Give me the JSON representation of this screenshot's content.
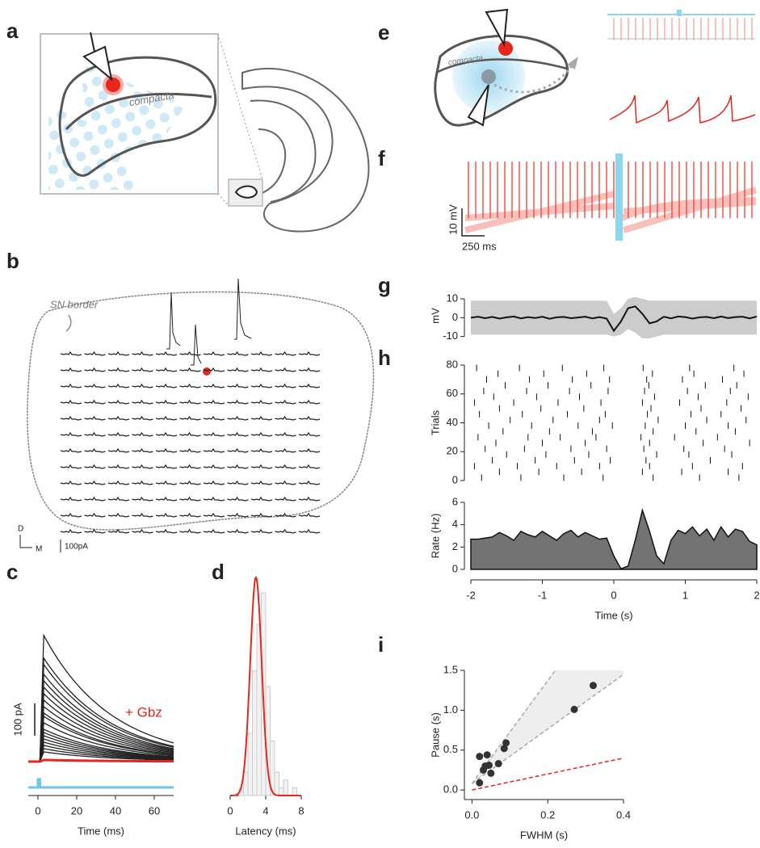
{
  "panels": {
    "a": {
      "label": "a",
      "text": "compacta"
    },
    "b": {
      "label": "b",
      "border": "SN border",
      "dorsal": "D",
      "medial": "M",
      "scale": "100pA"
    },
    "e": {
      "label": "e",
      "text": "compacta"
    },
    "f": {
      "label": "f",
      "yscale": "10 mV",
      "xscale": "250 ms"
    }
  },
  "chart_data": [
    {
      "type": "line",
      "label": "c",
      "xlabel": "Time (ms)",
      "xlim": [
        -5,
        70
      ],
      "xticks": [
        0,
        20,
        40,
        60
      ],
      "ylim": [
        -105,
        407
      ],
      "decay_ms": 35,
      "annotation": "+ Gbz",
      "scalebar": {
        "value": 100,
        "label": "100 pA"
      },
      "stimulus_color": "#6ec6ee",
      "series": [
        {
          "color": "#222222",
          "values": [
            390,
            320,
            300,
            270,
            250,
            230,
            210,
            190,
            170,
            150,
            140,
            120,
            100,
            90,
            80,
            70,
            60,
            50,
            40,
            30
          ]
        },
        {
          "color": "#e8261c",
          "values": [
            5
          ]
        }
      ]
    },
    {
      "type": "histogram",
      "label": "d",
      "xlabel": "Latency (ms)",
      "xlim": [
        0,
        8
      ],
      "xticks": [
        0,
        4,
        8
      ],
      "ylim": [
        0,
        28
      ],
      "color": "#cccccc",
      "bins": [
        0,
        0.5,
        1,
        1.5,
        2,
        2.5,
        3,
        3.5,
        4,
        4.5,
        5,
        5.5,
        6,
        6.5,
        7,
        7.5,
        8
      ],
      "values": [
        0,
        0,
        1,
        3,
        8,
        16,
        22,
        26,
        14,
        7,
        3,
        1,
        2,
        0,
        1,
        0
      ],
      "fit": {
        "color": "#e8261c",
        "mean": 2.9,
        "sd": 0.65,
        "peak": 28
      }
    },
    {
      "type": "line",
      "label": "g",
      "ylabel": "mV",
      "xlim": [
        -2,
        2
      ],
      "ylim": [
        -11,
        13
      ],
      "yticks": [
        -10,
        0,
        10
      ],
      "color": "#111111",
      "band_color": "#cccccc",
      "x": [
        -2,
        -1.9,
        -1.8,
        -1.7,
        -1.6,
        -1.5,
        -1.4,
        -1.3,
        -1.2,
        -1.1,
        -1,
        -0.9,
        -0.8,
        -0.7,
        -0.6,
        -0.5,
        -0.4,
        -0.3,
        -0.2,
        -0.1,
        0,
        0.1,
        0.2,
        0.3,
        0.4,
        0.5,
        0.6,
        0.7,
        0.8,
        0.9,
        1,
        1.1,
        1.2,
        1.3,
        1.4,
        1.5,
        1.6,
        1.7,
        1.8,
        1.9,
        2
      ],
      "values": [
        0,
        0.5,
        -0.3,
        0.4,
        -0.5,
        0.2,
        0.6,
        -0.4,
        0.3,
        -0.2,
        0.5,
        -0.6,
        0.2,
        0.4,
        -0.3,
        0.1,
        0.5,
        -0.4,
        0.3,
        -0.5,
        -7,
        -2,
        5,
        6,
        2,
        -3,
        -2,
        0.5,
        -0.4,
        0.6,
        0.3,
        -0.5,
        0.2,
        0.4,
        -0.3,
        0.6,
        -0.2,
        0.3,
        0.5,
        -0.4,
        0.6
      ],
      "band_high": [
        9,
        9,
        9,
        9,
        9,
        9,
        9,
        9,
        9,
        9,
        9,
        9,
        9,
        9,
        9,
        9,
        9,
        9,
        9,
        9,
        2,
        5,
        10,
        11,
        10,
        9,
        9,
        9,
        9,
        9,
        9,
        9,
        9,
        9,
        9,
        9,
        9,
        9,
        9,
        9,
        9
      ],
      "band_low": [
        -9,
        -9,
        -9,
        -9,
        -9,
        -9,
        -9,
        -9,
        -9,
        -9,
        -9,
        -9,
        -9,
        -9,
        -9,
        -9,
        -9,
        -9,
        -9,
        -9,
        -10,
        -9,
        -6,
        -8,
        -11,
        -11,
        -10,
        -9,
        -9,
        -9,
        -9,
        -9,
        -9,
        -9,
        -9,
        -9,
        -9,
        -9,
        -9,
        -9,
        -9
      ]
    },
    {
      "type": "raster",
      "label": "h",
      "ylabel": "Trials",
      "xlim": [
        -2,
        2
      ],
      "ylim": [
        0,
        80
      ],
      "yticks": [
        0,
        20,
        40,
        60,
        80
      ],
      "color": "#111111",
      "trials": [
        2,
        6,
        10,
        14,
        18,
        22,
        26,
        30,
        34,
        38,
        42,
        46,
        50,
        54,
        58,
        62,
        66,
        70,
        74,
        78
      ],
      "spike_times": [
        [
          -1.85,
          -1.3,
          -0.7,
          -0.15,
          0.55,
          1.2,
          1.75
        ],
        [
          -1.6,
          -1.05,
          -0.45,
          0.4,
          0.95,
          1.6
        ],
        [
          -1.95,
          -1.35,
          -0.8,
          -0.2,
          0.5,
          1.1,
          1.8
        ],
        [
          -1.7,
          -1.1,
          -0.55,
          -0.05,
          0.45,
          1.35
        ],
        [
          -1.5,
          -0.95,
          -0.35,
          0.6,
          1.05,
          1.65
        ],
        [
          -1.8,
          -1.25,
          -0.6,
          -0.1,
          0.42,
          0.98,
          1.55
        ],
        [
          -1.65,
          -1.0,
          -0.4,
          0.5,
          1.25,
          1.9
        ],
        [
          -1.9,
          -1.2,
          -0.75,
          -0.25,
          0.38,
          0.85,
          1.45
        ],
        [
          -1.55,
          -0.9,
          -0.3,
          0.55,
          1.15,
          1.7
        ],
        [
          -1.75,
          -1.15,
          -0.5,
          -0.02,
          0.44,
          1.0,
          1.6
        ],
        [
          -1.45,
          -0.85,
          -0.2,
          0.62,
          1.3,
          1.85
        ],
        [
          -1.88,
          -1.28,
          -0.65,
          -0.12,
          0.47,
          1.08,
          1.5
        ],
        [
          -1.6,
          -1.02,
          -0.42,
          0.52,
          1.22,
          1.78
        ],
        [
          -1.95,
          -1.4,
          -0.78,
          -0.18,
          0.4,
          0.92,
          1.58
        ],
        [
          -1.68,
          -1.08,
          -0.48,
          0.57,
          1.18,
          1.88
        ],
        [
          -1.82,
          -1.22,
          -0.62,
          -0.08,
          0.43,
          1.03,
          1.63
        ],
        [
          -1.52,
          -0.92,
          -0.32,
          0.49,
          1.28,
          1.72
        ],
        [
          -1.78,
          -1.18,
          -0.58,
          -0.06,
          0.46,
          0.96,
          1.52
        ],
        [
          -1.62,
          -0.98,
          -0.38,
          0.54,
          1.12,
          1.82
        ],
        [
          -1.92,
          -1.32,
          -0.72,
          -0.14,
          0.41,
          1.06,
          1.68
        ]
      ]
    },
    {
      "type": "area",
      "ylabel": "Rate (Hz)",
      "xlabel": "Time (s)",
      "xlim": [
        -2,
        2
      ],
      "xticks": [
        -2,
        -1,
        0,
        1,
        2
      ],
      "ylim": [
        0,
        6
      ],
      "yticks": [
        0,
        2,
        4,
        6
      ],
      "color": "#737373",
      "x": [
        -2,
        -1.9,
        -1.8,
        -1.7,
        -1.6,
        -1.5,
        -1.4,
        -1.3,
        -1.2,
        -1.1,
        -1,
        -0.9,
        -0.8,
        -0.7,
        -0.6,
        -0.5,
        -0.4,
        -0.3,
        -0.2,
        -0.1,
        0,
        0.1,
        0.2,
        0.3,
        0.4,
        0.5,
        0.6,
        0.7,
        0.8,
        0.9,
        1,
        1.1,
        1.2,
        1.3,
        1.4,
        1.5,
        1.6,
        1.7,
        1.8,
        1.9,
        2
      ],
      "values": [
        2.7,
        2.7,
        2.8,
        2.9,
        3.3,
        3.0,
        2.6,
        3.4,
        3.1,
        2.9,
        3.4,
        3.0,
        2.6,
        3.2,
        3.5,
        2.9,
        3.3,
        3.0,
        2.7,
        2.8,
        1.2,
        0.05,
        0.3,
        2.6,
        5.3,
        3.4,
        1.2,
        0.5,
        2.6,
        3.5,
        3.2,
        3.8,
        3.0,
        3.6,
        2.6,
        3.8,
        2.9,
        3.6,
        3.4,
        2.5,
        2.2
      ]
    },
    {
      "type": "scatter",
      "label": "i",
      "xlabel": "FWHM (s)",
      "ylabel": "Pause (s)",
      "xlim": [
        -0.02,
        0.4
      ],
      "ylim": [
        -0.12,
        1.5
      ],
      "color": "#333333",
      "band_color": "#eeeeee",
      "xticks": [
        {
          "value": 0,
          "label": "0.0"
        },
        0.2,
        0.4
      ],
      "yticks": [
        {
          "value": 0,
          "label": "0.0"
        },
        0.5,
        {
          "value": 1,
          "label": "1.0"
        },
        1.5
      ],
      "x": [
        0.02,
        0.02,
        0.03,
        0.035,
        0.04,
        0.045,
        0.05,
        0.07,
        0.085,
        0.09,
        0.27,
        0.32
      ],
      "values": [
        0.42,
        0.09,
        0.25,
        0.3,
        0.44,
        0.31,
        0.21,
        0.33,
        0.52,
        0.59,
        1.01,
        1.31
      ],
      "lines": [
        {
          "color": "#aaaaaa",
          "x": [
            0,
            0.22
          ],
          "y": [
            0.08,
            1.5
          ]
        },
        {
          "color": "#aaaaaa",
          "x": [
            0,
            0.4
          ],
          "y": [
            0.08,
            1.45
          ]
        },
        {
          "color": "#e8261c",
          "x": [
            0,
            0.4
          ],
          "y": [
            0,
            0.4
          ]
        }
      ]
    }
  ]
}
